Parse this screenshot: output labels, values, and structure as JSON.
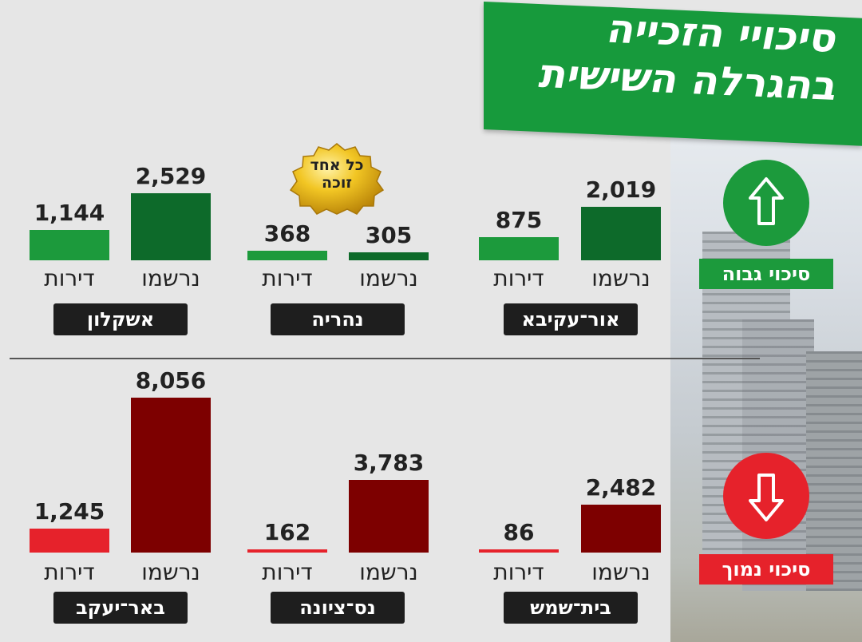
{
  "header": {
    "title_line1": "סיכויי הזכייה",
    "title_line2": "בהגרלה השישית"
  },
  "legend": {
    "high_chance": "סיכוי גבוה",
    "low_chance": "סיכוי נמוך"
  },
  "seal": {
    "line1": "כל אחד",
    "line2": "זוכה"
  },
  "colors": {
    "title_green": "#179a3c",
    "apartments_high": "#1c9a3c",
    "registered_high": "#0d6a2a",
    "apartments_low": "#e6222b",
    "registered_low": "#7d0000",
    "city_label_bg": "#1e1e1e"
  },
  "chart_data": [
    {
      "type": "bar",
      "group": "high",
      "categories": [
        "אור־עקיבא",
        "נהריה",
        "אשקלון"
      ],
      "series": [
        {
          "name": "נרשמו",
          "values": [
            2019,
            305,
            2529
          ]
        },
        {
          "name": "דירות",
          "values": [
            875,
            368,
            1144
          ]
        }
      ],
      "value_labels": {
        "נרשמו": [
          "2,019",
          "305",
          "2,529"
        ],
        "דירות": [
          "875",
          "368",
          "1,144"
        ]
      }
    },
    {
      "type": "bar",
      "group": "low",
      "categories": [
        "בית־שמש",
        "נס־ציונה",
        "באר־יעקב"
      ],
      "series": [
        {
          "name": "נרשמו",
          "values": [
            2482,
            3783,
            8056
          ]
        },
        {
          "name": "דירות",
          "values": [
            86,
            162,
            1245
          ]
        }
      ],
      "value_labels": {
        "נרשמו": [
          "2,482",
          "3,783",
          "8,056"
        ],
        "דירות": [
          "86",
          "162",
          "1,245"
        ]
      }
    }
  ]
}
